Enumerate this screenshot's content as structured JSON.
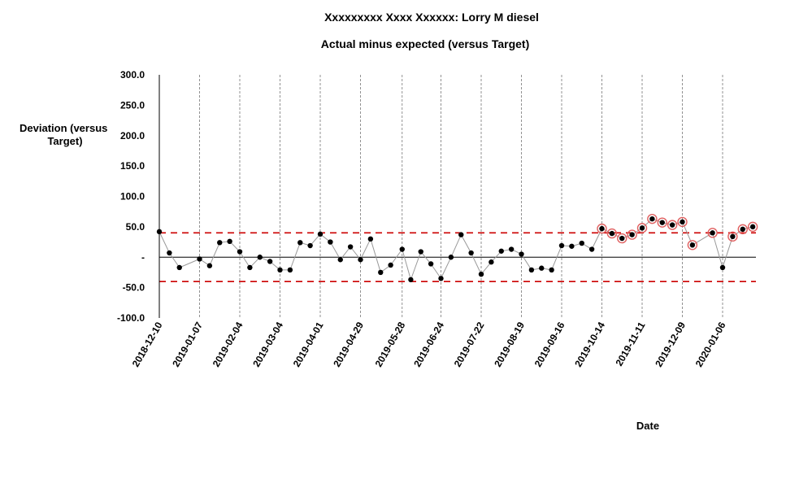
{
  "chart_data": {
    "type": "line",
    "title": "Xxxxxxxxx Xxxx Xxxxxx: Lorry M diesel",
    "subtitle": "Actual minus expected (versus Target)",
    "xlabel": "Date",
    "ylabel": "Deviation (versus Target)",
    "ylabel_lines": [
      "Deviation (versus",
      "Target)"
    ],
    "ylim": [
      -100,
      300
    ],
    "yticks": [
      {
        "value": 300,
        "label": "300.0"
      },
      {
        "value": 250,
        "label": "250.0"
      },
      {
        "value": 200,
        "label": "200.0"
      },
      {
        "value": 150,
        "label": "150.0"
      },
      {
        "value": 100,
        "label": "100.0"
      },
      {
        "value": 50,
        "label": "50.0"
      },
      {
        "value": 0,
        "label": "-"
      },
      {
        "value": -50,
        "label": "-50.0"
      },
      {
        "value": -100,
        "label": "-100.0"
      }
    ],
    "xticks": [
      "2018-12-10",
      "2019-01-07",
      "2019-02-04",
      "2019-03-04",
      "2019-04-01",
      "2019-04-29",
      "2019-05-28",
      "2019-06-24",
      "2019-07-22",
      "2019-08-19",
      "2019-09-16",
      "2019-10-14",
      "2019-11-11",
      "2019-12-09",
      "2020-01-06"
    ],
    "vertical_gridlines": true,
    "upper_limit": 40,
    "lower_limit": -40,
    "colors": {
      "line": "#999999",
      "point": "#000000",
      "limit": "#cc0000",
      "highlight": "#e06060",
      "zero": "#000000"
    },
    "series": [
      {
        "points": [
          {
            "x": "2018-12-10",
            "y": 42,
            "flag": false
          },
          {
            "x": "2018-12-17",
            "y": 7,
            "flag": false
          },
          {
            "x": "2018-12-24",
            "y": -17,
            "flag": false
          },
          {
            "x": "2019-01-07",
            "y": -3,
            "flag": false
          },
          {
            "x": "2019-01-14",
            "y": -14,
            "flag": false
          },
          {
            "x": "2019-01-21",
            "y": 24,
            "flag": false
          },
          {
            "x": "2019-01-28",
            "y": 26,
            "flag": false
          },
          {
            "x": "2019-02-04",
            "y": 9,
            "flag": false
          },
          {
            "x": "2019-02-11",
            "y": -17,
            "flag": false
          },
          {
            "x": "2019-02-18",
            "y": 0,
            "flag": false
          },
          {
            "x": "2019-02-25",
            "y": -7,
            "flag": false
          },
          {
            "x": "2019-03-04",
            "y": -21,
            "flag": false
          },
          {
            "x": "2019-03-11",
            "y": -21,
            "flag": false
          },
          {
            "x": "2019-03-18",
            "y": 24,
            "flag": false
          },
          {
            "x": "2019-03-25",
            "y": 19,
            "flag": false
          },
          {
            "x": "2019-04-01",
            "y": 38,
            "flag": false
          },
          {
            "x": "2019-04-08",
            "y": 25,
            "flag": false
          },
          {
            "x": "2019-04-15",
            "y": -4,
            "flag": false
          },
          {
            "x": "2019-04-22",
            "y": 17,
            "flag": false
          },
          {
            "x": "2019-04-29",
            "y": -4,
            "flag": false
          },
          {
            "x": "2019-05-06",
            "y": 30,
            "flag": false
          },
          {
            "x": "2019-05-13",
            "y": -25,
            "flag": false
          },
          {
            "x": "2019-05-20",
            "y": -13,
            "flag": false
          },
          {
            "x": "2019-05-28",
            "y": 13,
            "flag": false
          },
          {
            "x": "2019-06-03",
            "y": -37,
            "flag": false
          },
          {
            "x": "2019-06-10",
            "y": 9,
            "flag": false
          },
          {
            "x": "2019-06-17",
            "y": -11,
            "flag": false
          },
          {
            "x": "2019-06-24",
            "y": -35,
            "flag": false
          },
          {
            "x": "2019-07-01",
            "y": 0,
            "flag": false
          },
          {
            "x": "2019-07-08",
            "y": 37,
            "flag": false
          },
          {
            "x": "2019-07-15",
            "y": 7,
            "flag": false
          },
          {
            "x": "2019-07-22",
            "y": -28,
            "flag": false
          },
          {
            "x": "2019-07-29",
            "y": -8,
            "flag": false
          },
          {
            "x": "2019-08-05",
            "y": 10,
            "flag": false
          },
          {
            "x": "2019-08-12",
            "y": 13,
            "flag": false
          },
          {
            "x": "2019-08-19",
            "y": 5,
            "flag": false
          },
          {
            "x": "2019-08-26",
            "y": -21,
            "flag": false
          },
          {
            "x": "2019-09-02",
            "y": -18,
            "flag": false
          },
          {
            "x": "2019-09-09",
            "y": -21,
            "flag": false
          },
          {
            "x": "2019-09-16",
            "y": 19,
            "flag": false
          },
          {
            "x": "2019-09-23",
            "y": 18,
            "flag": false
          },
          {
            "x": "2019-09-30",
            "y": 23,
            "flag": false
          },
          {
            "x": "2019-10-07",
            "y": 13,
            "flag": false
          },
          {
            "x": "2019-10-14",
            "y": 47,
            "flag": true
          },
          {
            "x": "2019-10-21",
            "y": 39,
            "flag": true
          },
          {
            "x": "2019-10-28",
            "y": 31,
            "flag": true
          },
          {
            "x": "2019-11-04",
            "y": 37,
            "flag": true
          },
          {
            "x": "2019-11-11",
            "y": 48,
            "flag": true
          },
          {
            "x": "2019-11-18",
            "y": 63,
            "flag": true
          },
          {
            "x": "2019-11-25",
            "y": 57,
            "flag": true
          },
          {
            "x": "2019-12-02",
            "y": 53,
            "flag": true
          },
          {
            "x": "2019-12-09",
            "y": 58,
            "flag": true
          },
          {
            "x": "2019-12-16",
            "y": 20,
            "flag": true
          },
          {
            "x": "2019-12-30",
            "y": 40,
            "flag": true
          },
          {
            "x": "2020-01-06",
            "y": -17,
            "flag": false
          },
          {
            "x": "2020-01-13",
            "y": 34,
            "flag": true
          },
          {
            "x": "2020-01-20",
            "y": 46,
            "flag": true
          },
          {
            "x": "2020-01-27",
            "y": 50,
            "flag": true
          }
        ]
      }
    ]
  }
}
